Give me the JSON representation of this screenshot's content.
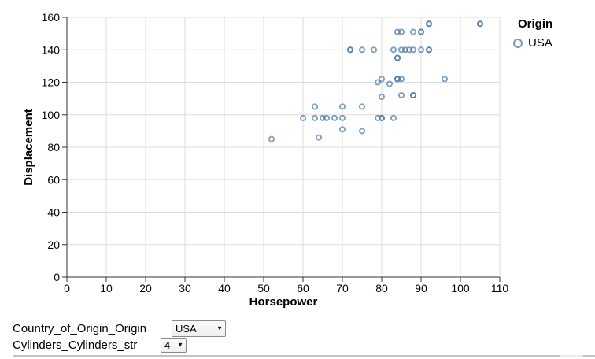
{
  "chart_data": {
    "type": "scatter",
    "xlabel": "Horsepower",
    "ylabel": "Displacement",
    "xlim": [
      0,
      110
    ],
    "ylim": [
      0,
      160
    ],
    "x_ticks": [
      0,
      10,
      20,
      30,
      40,
      50,
      60,
      70,
      80,
      90,
      100,
      110
    ],
    "y_ticks": [
      0,
      20,
      40,
      60,
      80,
      100,
      120,
      140,
      160
    ],
    "grid": true,
    "legend": {
      "title": "Origin",
      "entries": [
        {
          "label": "USA",
          "color": "#4c78a8"
        }
      ],
      "position": "right-top"
    },
    "series": [
      {
        "name": "USA",
        "points": [
          [
            52,
            85
          ],
          [
            64,
            86
          ],
          [
            70,
            91
          ],
          [
            75,
            90
          ],
          [
            60,
            98
          ],
          [
            63,
            98
          ],
          [
            65,
            98
          ],
          [
            66,
            98
          ],
          [
            68,
            98
          ],
          [
            70,
            98
          ],
          [
            79,
            98
          ],
          [
            80,
            98
          ],
          [
            80,
            98
          ],
          [
            83,
            98
          ],
          [
            63,
            105
          ],
          [
            70,
            105
          ],
          [
            75,
            105
          ],
          [
            80,
            111
          ],
          [
            85,
            112
          ],
          [
            88,
            112
          ],
          [
            88,
            112
          ],
          [
            79,
            120
          ],
          [
            80,
            122
          ],
          [
            82,
            119
          ],
          [
            84,
            122
          ],
          [
            84,
            122
          ],
          [
            85,
            122
          ],
          [
            96,
            122
          ],
          [
            84,
            135
          ],
          [
            84,
            135
          ],
          [
            72,
            140
          ],
          [
            72,
            140
          ],
          [
            75,
            140
          ],
          [
            78,
            140
          ],
          [
            83,
            140
          ],
          [
            85,
            140
          ],
          [
            86,
            140
          ],
          [
            87,
            140
          ],
          [
            88,
            140
          ],
          [
            90,
            140
          ],
          [
            92,
            140
          ],
          [
            92,
            140
          ],
          [
            84,
            151
          ],
          [
            85,
            151
          ],
          [
            88,
            151
          ],
          [
            90,
            151
          ],
          [
            90,
            151
          ],
          [
            92,
            156
          ],
          [
            92,
            156
          ],
          [
            105,
            156
          ],
          [
            105,
            156
          ]
        ]
      }
    ]
  },
  "colors": {
    "point_stroke": "#4c78a8",
    "grid": "#dddddd",
    "axis": "#333333",
    "label": "#000000",
    "scrollbar_thumb": "#c2c2c2",
    "scrollbar_track": "#ebebeb"
  },
  "legend": {
    "title": "Origin",
    "usa_label": "USA"
  },
  "controls": {
    "origin": {
      "label": "Country_of_Origin_Origin",
      "value": "USA"
    },
    "cylinders": {
      "label": "Cylinders_Cylinders_str",
      "value": "4"
    }
  }
}
